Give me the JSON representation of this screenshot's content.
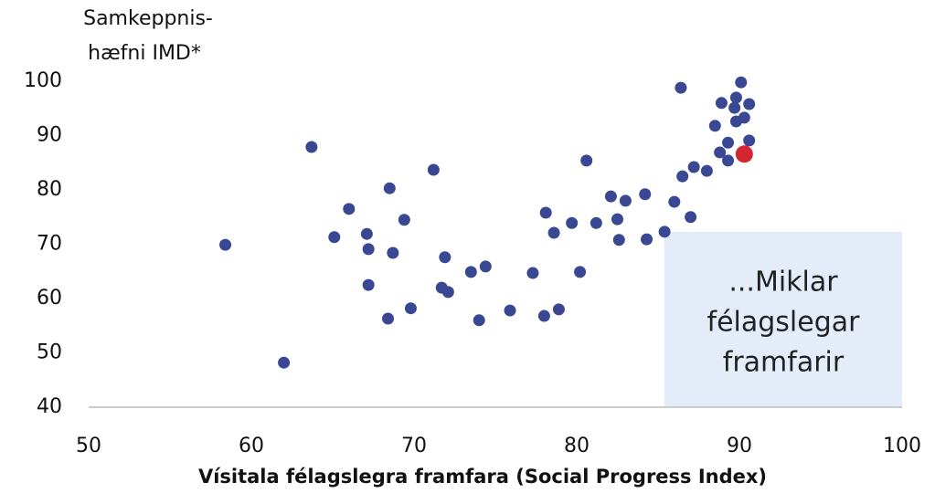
{
  "chart_data": {
    "type": "scatter",
    "ylabel": [
      "Samkeppnis-",
      "hæfni IMD*"
    ],
    "xlabel": "Vísitala félagslegra framfara (Social Progress Index)",
    "x": [
      58.4,
      62.0,
      63.7,
      65.1,
      66.0,
      67.1,
      67.2,
      67.2,
      68.5,
      68.7,
      68.4,
      69.4,
      69.8,
      71.2,
      71.9,
      71.7,
      72.1,
      73.5,
      74.4,
      74.0,
      75.9,
      77.3,
      78.1,
      78.0,
      78.6,
      78.9,
      79.7,
      80.2,
      80.6,
      81.2,
      82.1,
      83.0,
      82.5,
      82.6,
      84.2,
      84.3,
      85.4,
      86.0,
      86.4,
      86.5,
      87.0,
      87.2,
      88.0,
      88.5,
      88.8,
      88.9,
      89.3,
      89.3,
      89.7,
      89.8,
      89.8,
      90.1,
      90.3,
      90.6,
      90.6
    ],
    "y": [
      69.9,
      48.2,
      87.9,
      71.3,
      76.5,
      71.9,
      69.1,
      62.5,
      80.3,
      68.4,
      56.3,
      74.5,
      58.2,
      83.7,
      67.6,
      62.0,
      61.2,
      64.9,
      65.9,
      56.0,
      57.8,
      64.7,
      75.8,
      56.8,
      72.1,
      58.0,
      73.9,
      64.9,
      85.4,
      73.9,
      78.8,
      78.0,
      74.6,
      70.8,
      79.2,
      70.9,
      72.3,
      77.8,
      98.8,
      82.5,
      75.0,
      84.2,
      83.5,
      91.8,
      86.9,
      96.0,
      88.7,
      85.4,
      95.1,
      97.0,
      92.6,
      99.8,
      93.3,
      95.8,
      89.1
    ],
    "color": "#3a4793",
    "highlight": {
      "x": 90.3,
      "y": 86.6,
      "color": "#d4262e"
    },
    "annotation": [
      "...Miklar",
      "félagslegar",
      "framfarir"
    ],
    "xlim": [
      50,
      100
    ],
    "xticks": [
      50,
      60,
      70,
      80,
      90,
      100
    ],
    "ylim": [
      40,
      100
    ],
    "yticks": [
      40,
      50,
      60,
      70,
      80,
      90,
      100
    ],
    "grid": false
  }
}
